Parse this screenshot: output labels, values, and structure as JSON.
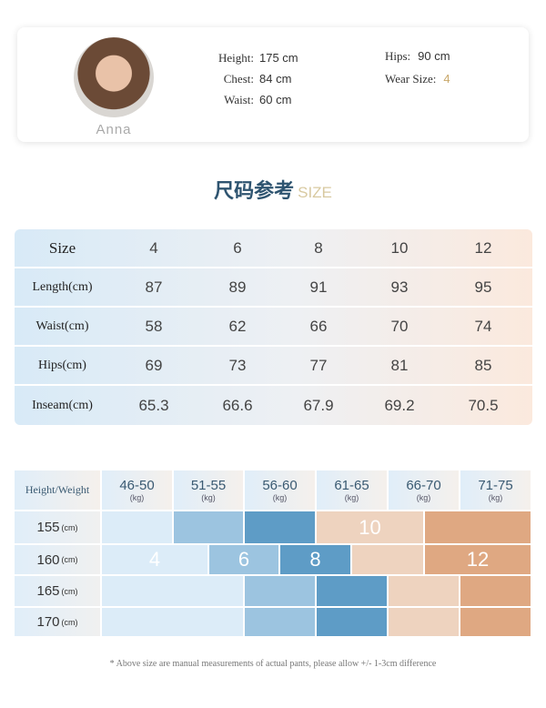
{
  "model": {
    "name": "Anna",
    "stats": [
      {
        "label": "Height:",
        "value": "175 cm"
      },
      {
        "label": "Chest:",
        "value": "84 cm"
      },
      {
        "label": "Waist:",
        "value": "60 cm"
      },
      {
        "label": "Hips:",
        "value": "90 cm"
      },
      {
        "label": "Wear Size:",
        "value": "4"
      }
    ]
  },
  "title": {
    "cn": "尺码参考",
    "en": "SIZE"
  },
  "size_table": {
    "header": [
      "Size",
      "4",
      "6",
      "8",
      "10",
      "12"
    ],
    "rows": [
      [
        "Length(cm)",
        "87",
        "89",
        "91",
        "93",
        "95"
      ],
      [
        "Waist(cm)",
        "58",
        "62",
        "66",
        "70",
        "74"
      ],
      [
        "Hips(cm)",
        "69",
        "73",
        "77",
        "81",
        "85"
      ],
      [
        "Inseam(cm)",
        "65.3",
        "66.6",
        "67.9",
        "69.2",
        "70.5"
      ]
    ]
  },
  "fit_chart": {
    "corner": "Height/Weight",
    "unit_kg": "(kg)",
    "unit_cm": "(cm)",
    "weights": [
      "46-50",
      "51-55",
      "56-60",
      "61-65",
      "66-70",
      "71-75"
    ],
    "heights": [
      "155",
      "160",
      "165",
      "170"
    ],
    "size_labels": [
      "4",
      "6",
      "8",
      "10",
      "12"
    ],
    "colors": {
      "s4": "#dcecf8",
      "s6": "#9cc4e0",
      "s8": "#5e9cc6",
      "s10": "#eed3bf",
      "s12": "#dfa882"
    }
  },
  "footnote": "* Above size are manual measurements of actual pants, please allow +/- 1-3cm difference"
}
